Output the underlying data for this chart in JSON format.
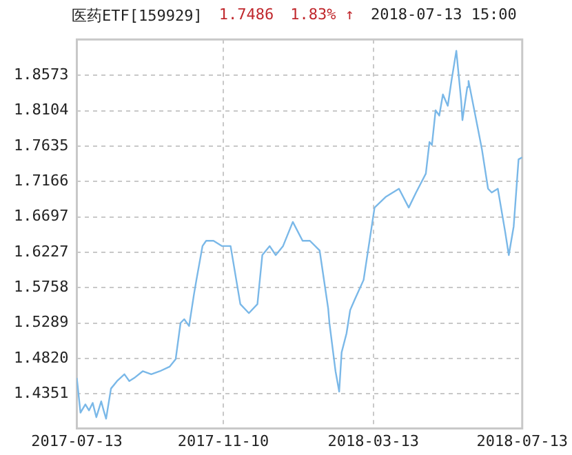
{
  "chart_data": {
    "type": "line",
    "annotations": [
      "医药ETF[159929]",
      "1.7486",
      "1.83% ↑",
      "2018-07-13 15:00"
    ],
    "x": [
      "2017-07-13",
      "2017-07-16",
      "2017-07-20",
      "2017-07-23",
      "2017-07-26",
      "2017-07-29",
      "2017-08-02",
      "2017-08-04",
      "2017-08-06",
      "2017-08-10",
      "2017-08-15",
      "2017-08-21",
      "2017-08-25",
      "2017-08-29",
      "2017-09-05",
      "2017-09-12",
      "2017-09-19",
      "2017-09-27",
      "2017-10-02",
      "2017-10-06",
      "2017-10-09",
      "2017-10-13",
      "2017-10-17",
      "2017-10-19",
      "2017-10-24",
      "2017-10-27",
      "2017-11-02",
      "2017-11-09",
      "2017-11-16",
      "2017-11-24",
      "2017-12-01",
      "2017-12-08",
      "2017-12-12",
      "2017-12-18",
      "2017-12-23",
      "2017-12-29",
      "2018-01-06",
      "2018-01-14",
      "2018-01-20",
      "2018-01-28",
      "2018-02-04",
      "2018-02-05",
      "2018-02-10",
      "2018-02-13",
      "2018-02-15",
      "2018-02-19",
      "2018-02-22",
      "2018-02-26",
      "2018-03-05",
      "2018-03-14",
      "2018-03-23",
      "2018-04-03",
      "2018-04-11",
      "2018-04-17",
      "2018-04-25",
      "2018-04-28",
      "2018-04-30",
      "2018-05-03",
      "2018-05-06",
      "2018-05-09",
      "2018-05-13",
      "2018-05-16",
      "2018-05-20",
      "2018-05-24",
      "2018-05-25",
      "2018-05-29",
      "2018-05-30",
      "2018-06-07",
      "2018-06-10",
      "2018-06-15",
      "2018-06-18",
      "2018-06-23",
      "2018-06-29",
      "2018-07-02",
      "2018-07-06",
      "2018-07-10",
      "2018-07-13"
    ],
    "series": [
      {
        "color": "#7ab8e8",
        "values": [
          1.456,
          1.41,
          1.421,
          1.413,
          1.423,
          1.404,
          1.425,
          1.413,
          1.402,
          1.442,
          1.452,
          1.461,
          1.452,
          1.456,
          1.465,
          1.461,
          1.465,
          1.471,
          1.481,
          1.529,
          1.534,
          1.525,
          1.567,
          1.586,
          1.631,
          1.638,
          1.638,
          1.631,
          1.631,
          1.554,
          1.542,
          1.554,
          1.619,
          1.631,
          1.619,
          1.631,
          1.663,
          1.638,
          1.638,
          1.625,
          1.548,
          1.529,
          1.465,
          1.438,
          1.49,
          1.515,
          1.546,
          1.561,
          1.586,
          1.682,
          1.696,
          1.707,
          1.682,
          1.702,
          1.727,
          1.769,
          1.765,
          1.811,
          1.804,
          1.832,
          1.817,
          1.85,
          1.89,
          1.823,
          1.798,
          1.842,
          1.85,
          1.784,
          1.759,
          1.707,
          1.702,
          1.707,
          1.65,
          1.619,
          1.657,
          1.746,
          1.7486
        ]
      }
    ],
    "xlim": [
      "2017-07-13",
      "2018-07-13"
    ],
    "xticks": [
      "2017-07-13",
      "2017-11-10",
      "2018-03-13",
      "2018-07-13"
    ],
    "ylim": [
      1.389,
      1.905
    ],
    "yticks": [
      1.4351,
      {
        "value": 1.482,
        "label": "1.4820"
      },
      1.5289,
      1.5758,
      1.6227,
      1.6697,
      1.7166,
      1.7635,
      1.8104,
      1.8573
    ],
    "grid": true,
    "marker": "none",
    "line_style": "solid",
    "legend": false
  }
}
